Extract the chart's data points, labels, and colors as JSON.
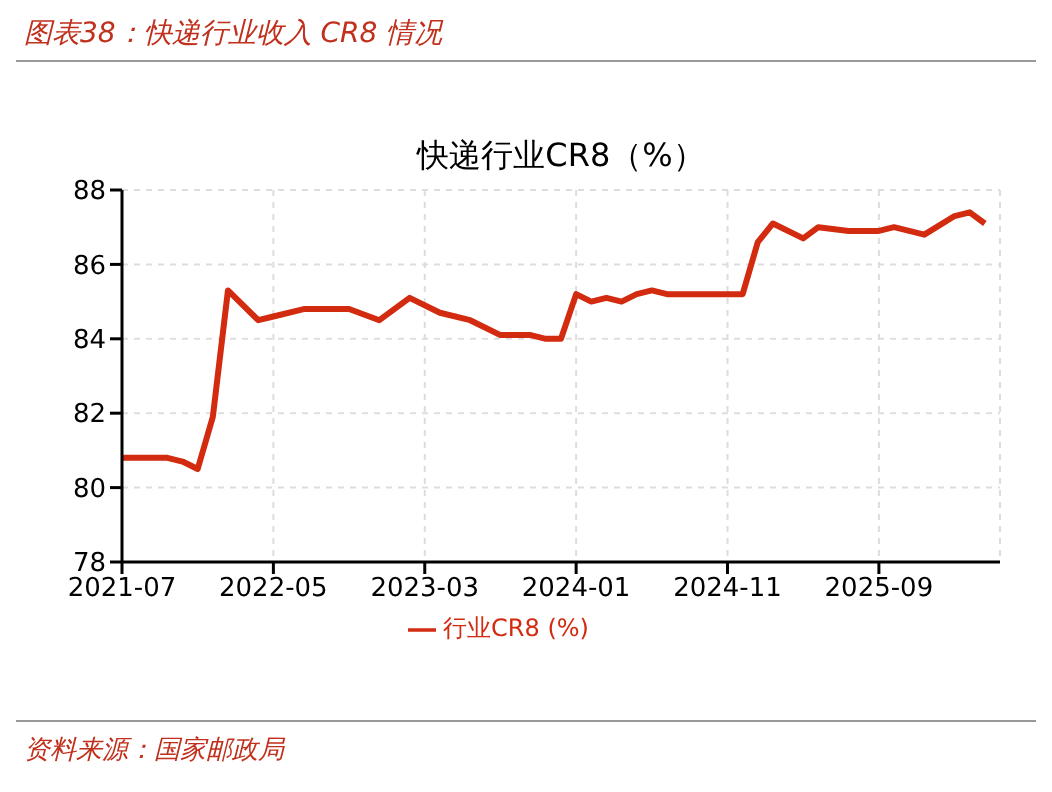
{
  "chart_data": {
    "type": "line",
    "title": "快递行业CR8（%）",
    "subtitle": "图表38：快递行业收入 CR8 情况",
    "annotations": [
      "资料来源：国家邮政局"
    ],
    "x": [
      "2021-07",
      "2021-08",
      "2021-09",
      "2021-10",
      "2021-11",
      "2021-12",
      "2022-01",
      "2022-02",
      "2022-04",
      "2022-05",
      "2022-07",
      "2022-08",
      "2022-10",
      "2022-12",
      "2023-02",
      "2023-04",
      "2023-06",
      "2023-08",
      "2023-10",
      "2023-11",
      "2023-12",
      "2024-01",
      "2024-02",
      "2024-03",
      "2024-04",
      "2024-05",
      "2024-06",
      "2024-07",
      "2024-08",
      "2024-09",
      "2024-10",
      "2024-12",
      "2025-01",
      "2025-02",
      "2025-04",
      "2025-05",
      "2025-07",
      "2025-09",
      "2025-10",
      "2025-12",
      "2026-02",
      "2026-03",
      "2026-04"
    ],
    "series": [
      {
        "name": "行业CR8 (%)",
        "color": "#d22b10",
        "values": [
          80.8,
          80.8,
          80.8,
          80.8,
          80.7,
          80.5,
          81.9,
          85.3,
          84.5,
          84.6,
          84.8,
          84.8,
          84.8,
          84.5,
          85.1,
          84.7,
          84.5,
          84.1,
          84.1,
          84.0,
          84.0,
          85.2,
          85.0,
          85.1,
          85.0,
          85.2,
          85.3,
          85.2,
          85.2,
          85.2,
          85.2,
          85.2,
          86.6,
          87.1,
          86.7,
          87.0,
          86.9,
          86.9,
          87.0,
          86.8,
          87.3,
          87.4,
          87.1
        ]
      }
    ],
    "xlim": [
      "2021-07",
      "2026-05"
    ],
    "xticks": [
      "2021-07",
      "2022-05",
      "2023-03",
      "2024-01",
      "2024-11",
      "2025-09"
    ],
    "ylim": [
      78,
      88
    ],
    "yticks": [
      78,
      80,
      82,
      84,
      86,
      88
    ],
    "grid": true,
    "legend": "bottom",
    "marker": "none",
    "line_style": "solid"
  }
}
